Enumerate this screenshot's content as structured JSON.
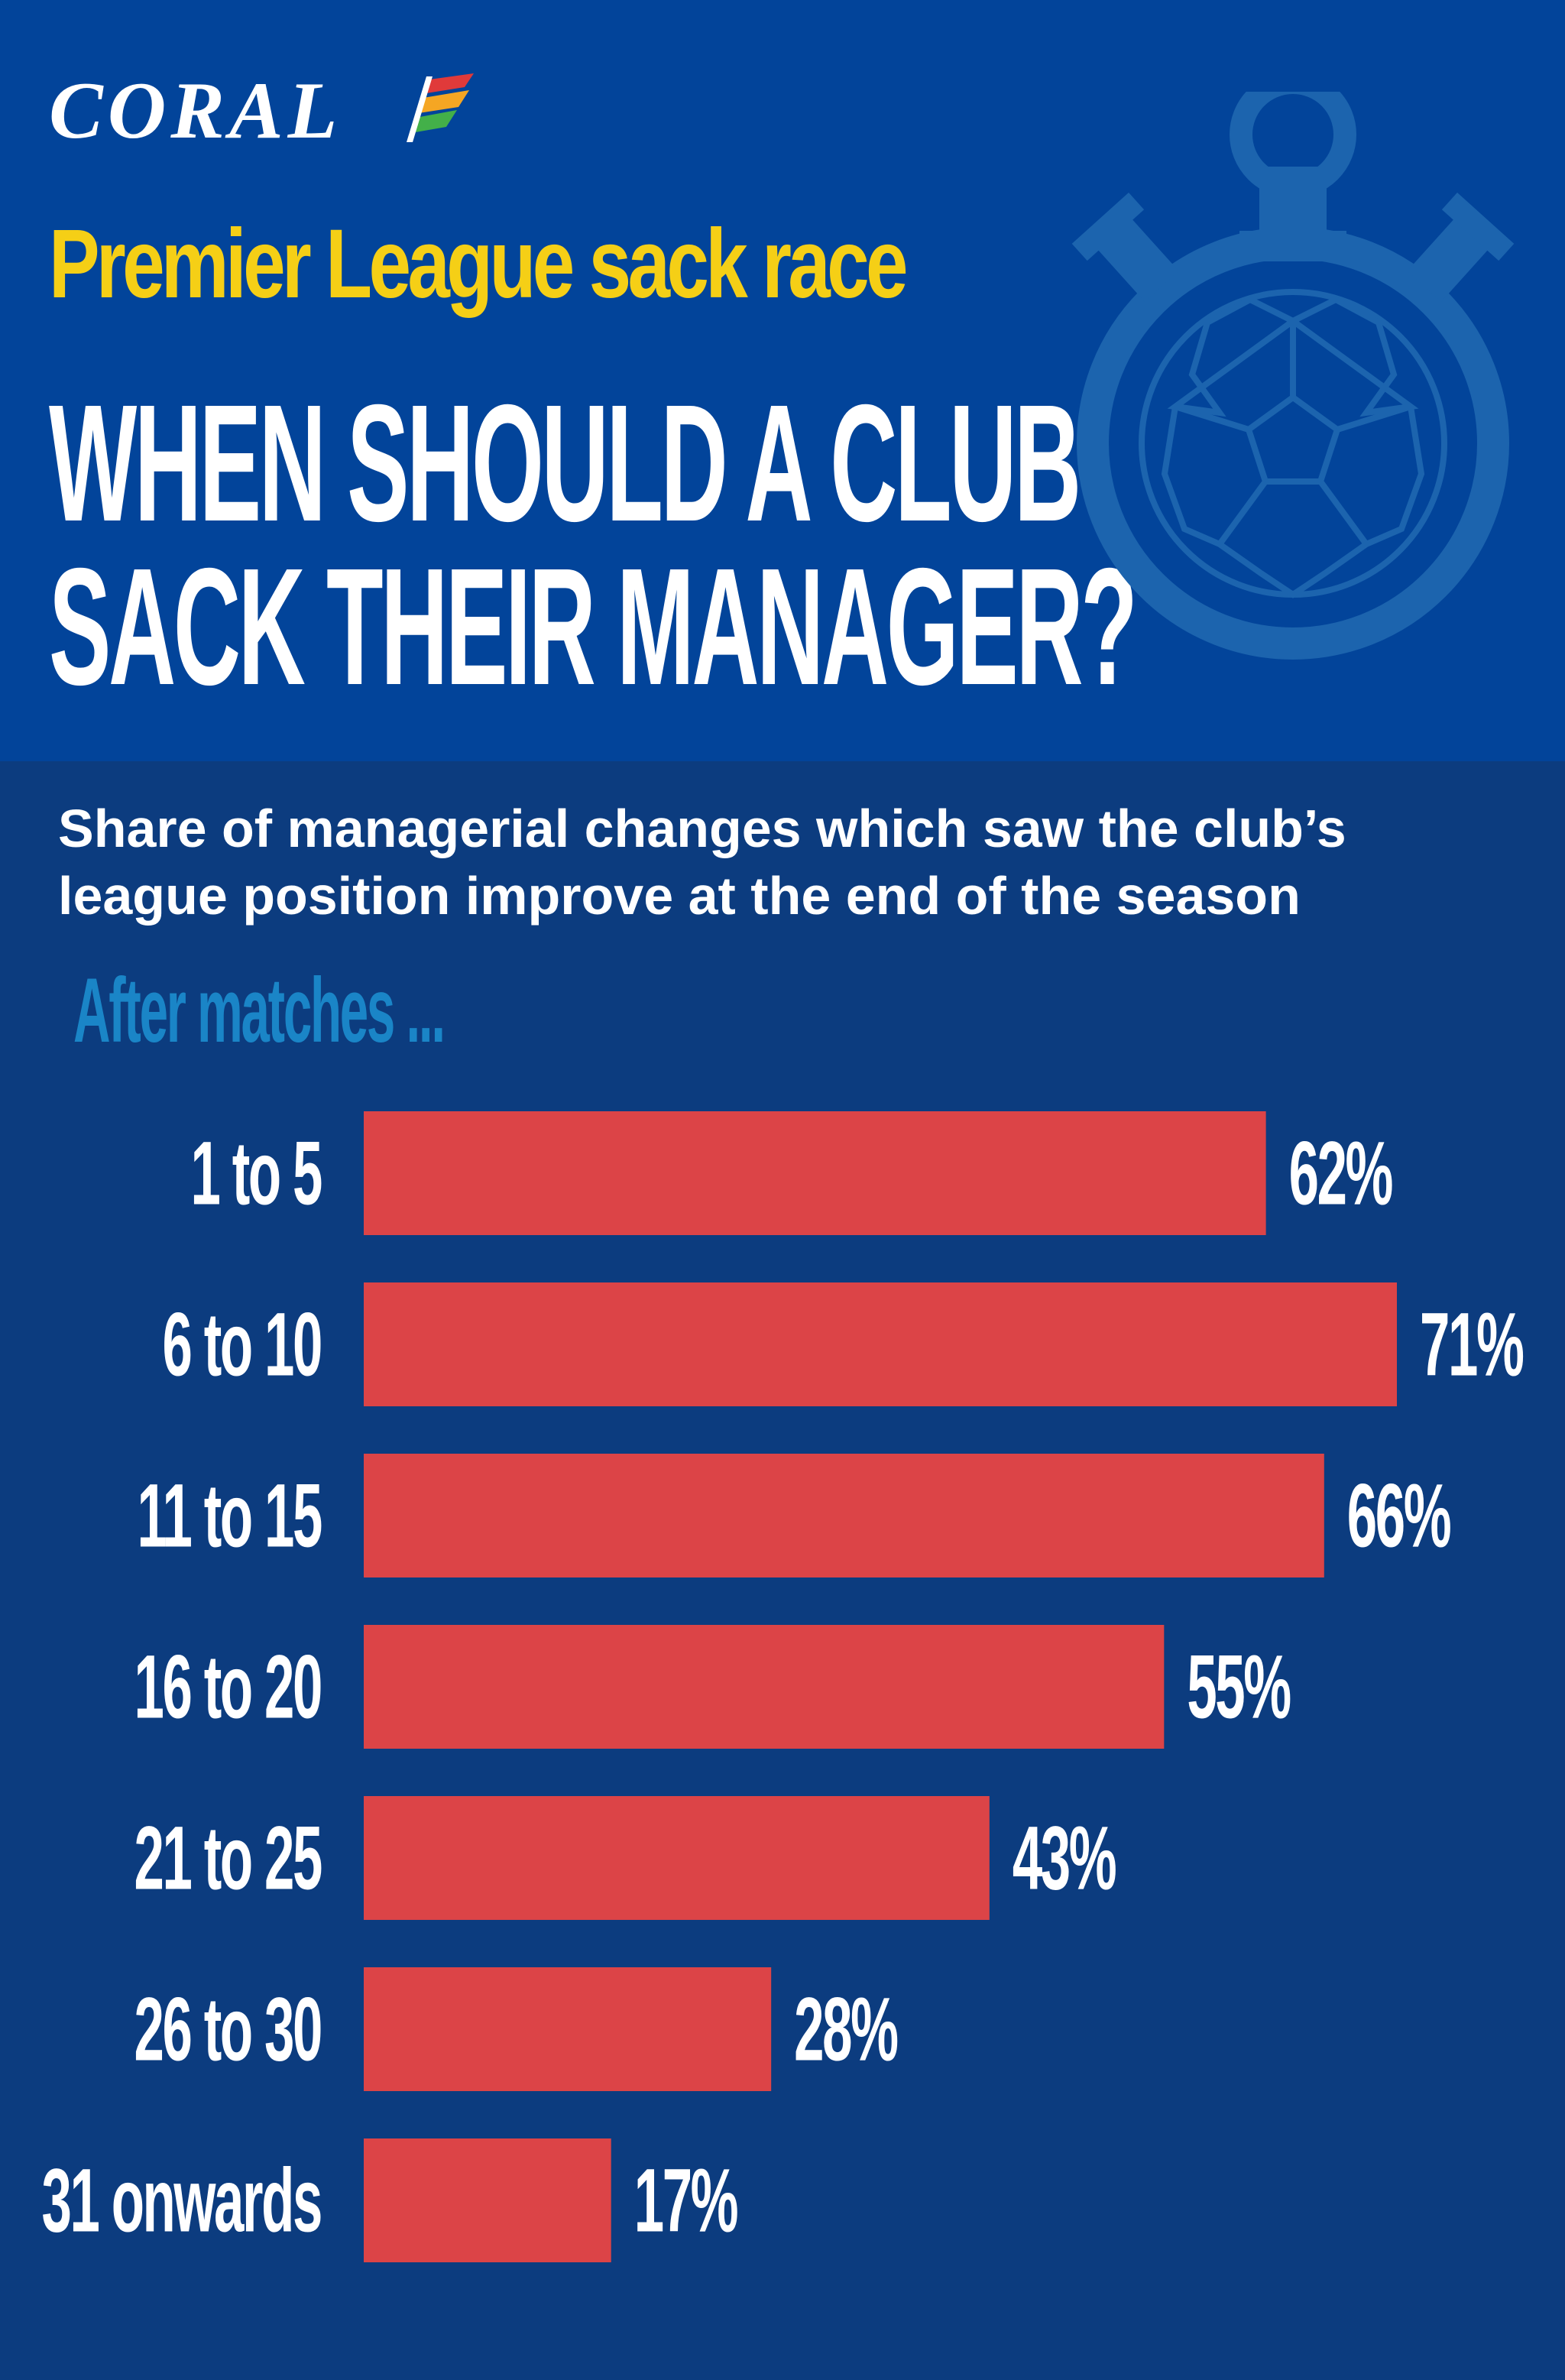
{
  "brand": {
    "logo_text": "CORAL"
  },
  "header": {
    "kicker": "Premier League sack race",
    "headline_line1": "WHEN SHOULD A CLUB",
    "headline_line2": "SACK THEIR MANAGER?"
  },
  "colors": {
    "header_bg": "#02449a",
    "body_bg": "#0c3c7f",
    "bar": "#dc4447",
    "kicker": "#f5cf16",
    "axis_label": "#1a85c7",
    "watch_icon": "#1c64ae"
  },
  "icons": [
    "stopwatch-football-icon"
  ],
  "chart_data": {
    "type": "bar",
    "orientation": "horizontal",
    "title": "Share of managerial changes which saw the club’s league position improve at the end of the season",
    "xlabel": "",
    "ylabel": "After matches ...",
    "categories": [
      "1 to 5",
      "6 to 10",
      "11 to 15",
      "16 to 20",
      "21 to 25",
      "26 to 30",
      "31 onwards"
    ],
    "values": [
      62,
      71,
      66,
      55,
      43,
      28,
      17
    ],
    "value_labels": [
      "62%",
      "71%",
      "66%",
      "55%",
      "43%",
      "28%",
      "17%"
    ],
    "xlim": [
      0,
      71
    ],
    "grid": false,
    "legend": "none"
  }
}
